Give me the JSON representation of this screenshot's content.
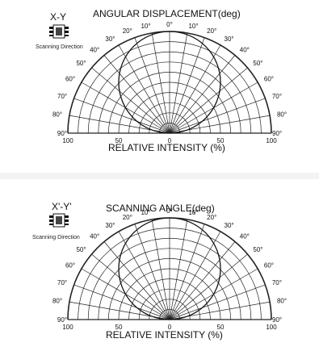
{
  "panels": [
    {
      "axis_label": "X-Y",
      "direction_label": "Scanning Direction",
      "title": "ANGULAR DISPLACEMENT(deg)",
      "intensity_label": "RELATIVE INTENSITY  (%)",
      "intensity_ticks": [
        "100",
        "50",
        "0",
        "50",
        "100"
      ]
    },
    {
      "axis_label": "X'-Y'",
      "direction_label": "Scanning Direction",
      "title": "SCANNING ANGLE(deg)",
      "intensity_label": "RELATIVE INTENSITY  (%)",
      "intensity_ticks": [
        "100",
        "50",
        "0",
        "50",
        "100"
      ]
    }
  ],
  "angle_ticks": [
    "90°",
    "80°",
    "70°",
    "60°",
    "50°",
    "40°",
    "30°",
    "20°",
    "10°",
    "0°",
    "10°",
    "20°",
    "30°",
    "40°",
    "50°",
    "60°",
    "70°",
    "80°",
    "90°"
  ],
  "colors": {
    "grid": "#222222",
    "background": "#f2f3f5",
    "panel": "#ffffff"
  }
}
